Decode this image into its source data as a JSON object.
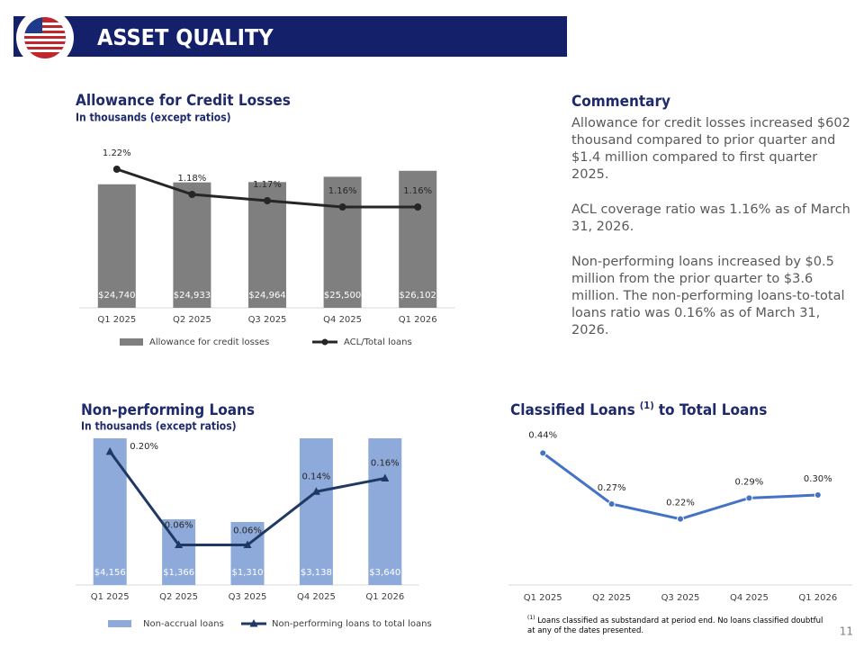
{
  "header": {
    "title": "ASSET QUALITY",
    "page_number": "11"
  },
  "commentary": {
    "title": "Commentary",
    "paragraphs": [
      "Allowance for credit losses increased $602 thousand compared to prior quarter and $1.4 million compared to first quarter 2025.",
      "ACL coverage ratio was 1.16% as of March 31, 2026.",
      "Non-performing loans increased by $0.5 million from the prior quarter to $3.6 million. The non-performing loans-to-total loans ratio was 0.16% as of March 31, 2026."
    ]
  },
  "chart_data": [
    {
      "type": "combo",
      "title": "Allowance for Credit Losses",
      "subtitle": "In thousands (except ratios)",
      "categories": [
        "Q1 2025",
        "Q2 2025",
        "Q3 2025",
        "Q4 2025",
        "Q1 2026"
      ],
      "series": [
        {
          "name": "Allowance for credit losses",
          "type": "bar",
          "color": "#7f7f7f",
          "values": [
            24740,
            24933,
            24964,
            25500,
            26102
          ],
          "value_labels": [
            "$24,740",
            "$24,933",
            "$24,964",
            "$25,500",
            "$26,102"
          ]
        },
        {
          "name": "ACL/Total loans",
          "type": "line",
          "axis": "y2",
          "marker": "circle",
          "color": "#262626",
          "values": [
            1.22,
            1.18,
            1.17,
            1.16,
            1.16
          ],
          "value_labels": [
            "1.22%",
            "1.18%",
            "1.17%",
            "1.16%",
            "1.16%"
          ]
        }
      ],
      "ylim": [
        12300,
        28800
      ],
      "y2lim": [
        1.0,
        1.26
      ],
      "legend": "bottom"
    },
    {
      "type": "combo",
      "title": "Non-performing Loans",
      "subtitle": "In thousands (except ratios)",
      "categories": [
        "Q1 2025",
        "Q2 2025",
        "Q3 2025",
        "Q4 2025",
        "Q1 2026"
      ],
      "series": [
        {
          "name": "Non-accrual loans",
          "type": "bar",
          "color": "#8eaadb",
          "values": [
            4156,
            1366,
            1310,
            3138,
            3640
          ],
          "value_labels": [
            "$4,156",
            "$1,366",
            "$1,310",
            "$3,138",
            "$3,640"
          ]
        },
        {
          "name": "Non-performing loans to total loans",
          "type": "line",
          "axis": "y2",
          "marker": "triangle",
          "color": "#1f3864",
          "values": [
            0.2,
            0.06,
            0.06,
            0.14,
            0.16
          ],
          "value_labels": [
            "0.20%",
            "0.06%",
            "0.06%",
            "0.14%",
            "0.16%"
          ]
        }
      ],
      "ylim": [
        0,
        3050
      ],
      "y2lim": [
        0,
        0.22
      ],
      "legend": "bottom"
    },
    {
      "type": "line",
      "title": "Classified Loans",
      "title_superscript": "(1)",
      "title_suffix": "to Total Loans",
      "categories": [
        "Q1 2025",
        "Q2 2025",
        "Q3 2025",
        "Q4 2025",
        "Q1 2026"
      ],
      "series": [
        {
          "name": "Classified loans to total loans",
          "type": "line",
          "marker": "circle",
          "color": "#4472c4",
          "values": [
            0.44,
            0.27,
            0.22,
            0.29,
            0.3
          ],
          "value_labels": [
            "0.44%",
            "0.27%",
            "0.22%",
            "0.29%",
            "0.30%"
          ]
        }
      ],
      "ylim": [
        0,
        0.54
      ],
      "footnote_marker": "(1)",
      "footnote": "Loans classified as substandard at period end. No loans classified doubtful at any of the dates presented."
    }
  ]
}
